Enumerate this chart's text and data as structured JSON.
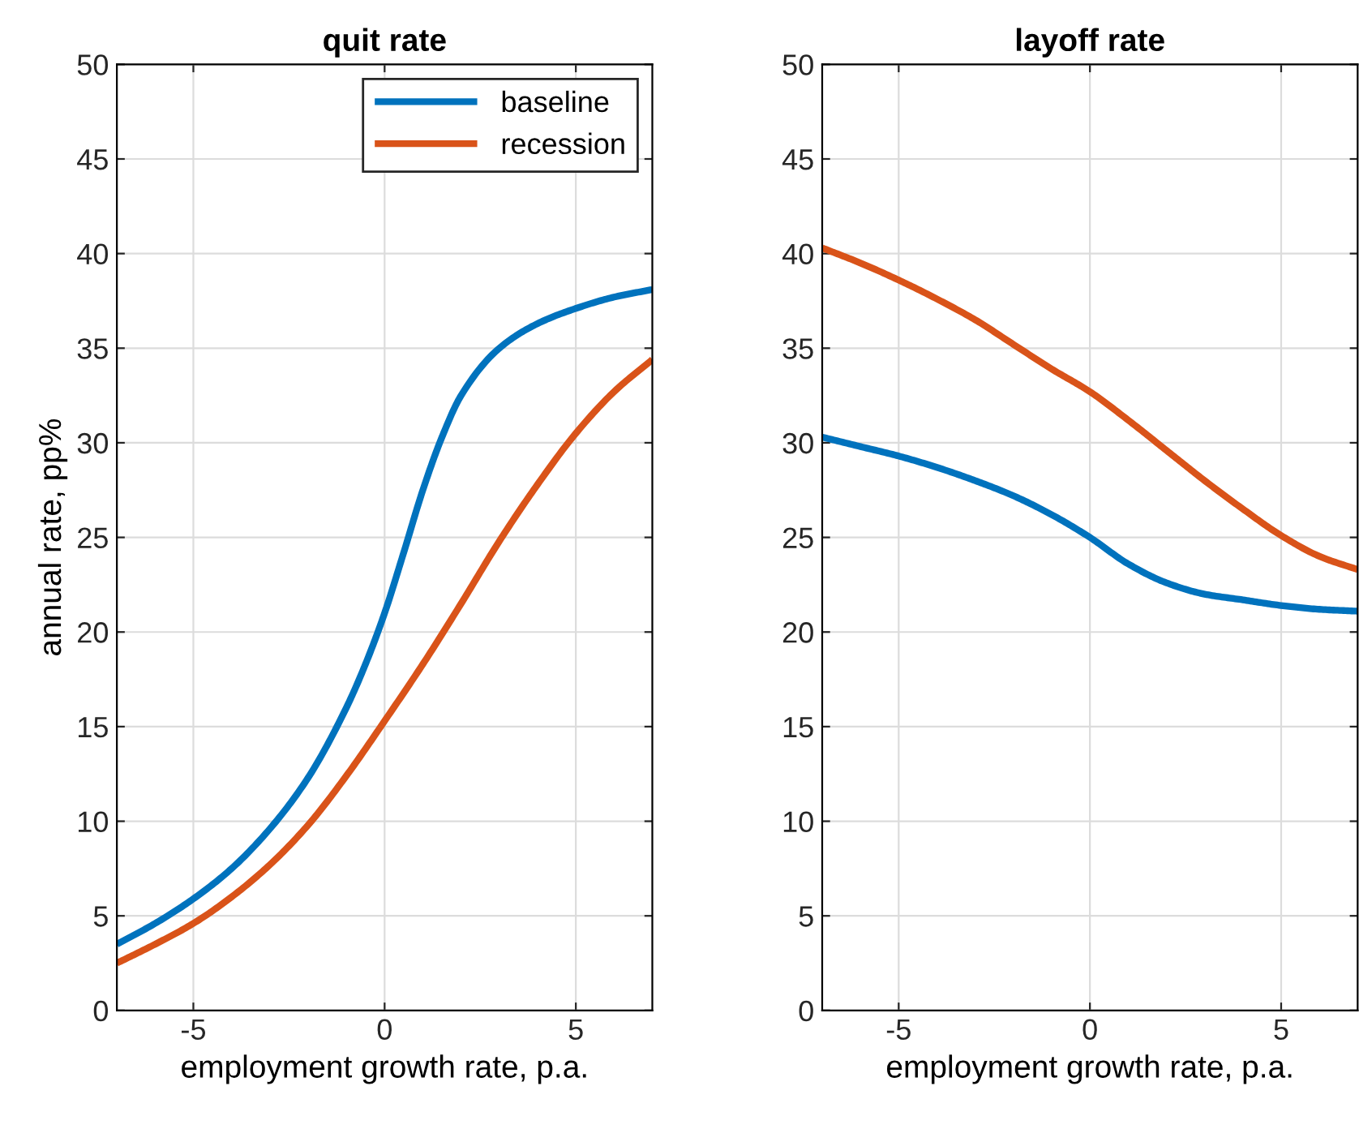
{
  "chart_data": [
    {
      "type": "line",
      "title": "quit rate",
      "xlabel": "employment growth rate, p.a.",
      "ylabel": "annual rate, pp%",
      "xlim": [
        -7,
        7
      ],
      "xticks": [
        {
          "value": -5,
          "label": "-5"
        },
        0,
        5
      ],
      "ylim": [
        0,
        50
      ],
      "yticks": [
        0,
        5,
        10,
        15,
        20,
        25,
        30,
        35,
        40,
        45,
        50
      ],
      "grid": true,
      "legend": "top right",
      "x": [
        -7,
        -6,
        -5,
        -4,
        -3,
        -2,
        -1,
        -0.5,
        0,
        0.5,
        1,
        1.5,
        2,
        3,
        4,
        5,
        6,
        7
      ],
      "series": [
        {
          "name": "baseline",
          "color": "#0072bd",
          "values": [
            3.5,
            4.6,
            5.9,
            7.5,
            9.6,
            12.3,
            16,
            18.3,
            21,
            24.2,
            27.5,
            30.3,
            32.5,
            35,
            36.3,
            37.1,
            37.7,
            38.1
          ]
        },
        {
          "name": "recession",
          "color": "#d95319",
          "x": [
            -7,
            -6,
            -5,
            -4,
            -3,
            -2,
            -1,
            0,
            1,
            2,
            3,
            4,
            5,
            6,
            7
          ],
          "values": [
            2.5,
            3.5,
            4.6,
            6,
            7.7,
            9.8,
            12.4,
            15.3,
            18.3,
            21.5,
            24.8,
            27.8,
            30.5,
            32.7,
            34.4
          ]
        }
      ]
    },
    {
      "type": "line",
      "title": "layoff rate",
      "xlabel": "employment growth rate, p.a.",
      "xlim": [
        -7,
        7
      ],
      "xticks": [
        {
          "value": -5,
          "label": "-5"
        },
        0,
        5
      ],
      "ylim": [
        0,
        50
      ],
      "yticks": [
        0,
        5,
        10,
        15,
        20,
        25,
        30,
        35,
        40,
        45,
        50
      ],
      "grid": true,
      "x": [
        -7,
        -6,
        -5,
        -4,
        -3,
        -2,
        -1,
        0,
        1,
        2,
        3,
        4,
        5,
        6,
        7
      ],
      "series": [
        {
          "color": "#0072bd",
          "values": [
            30.3,
            29.8,
            29.3,
            28.7,
            28,
            27.2,
            26.2,
            25,
            23.6,
            22.6,
            22,
            21.7,
            21.4,
            21.2,
            21.1
          ]
        },
        {
          "color": "#d95319",
          "values": [
            40.3,
            39.5,
            38.6,
            37.6,
            36.5,
            35.2,
            33.9,
            32.7,
            31.2,
            29.6,
            28,
            26.5,
            25.1,
            24,
            23.3
          ]
        }
      ]
    }
  ]
}
